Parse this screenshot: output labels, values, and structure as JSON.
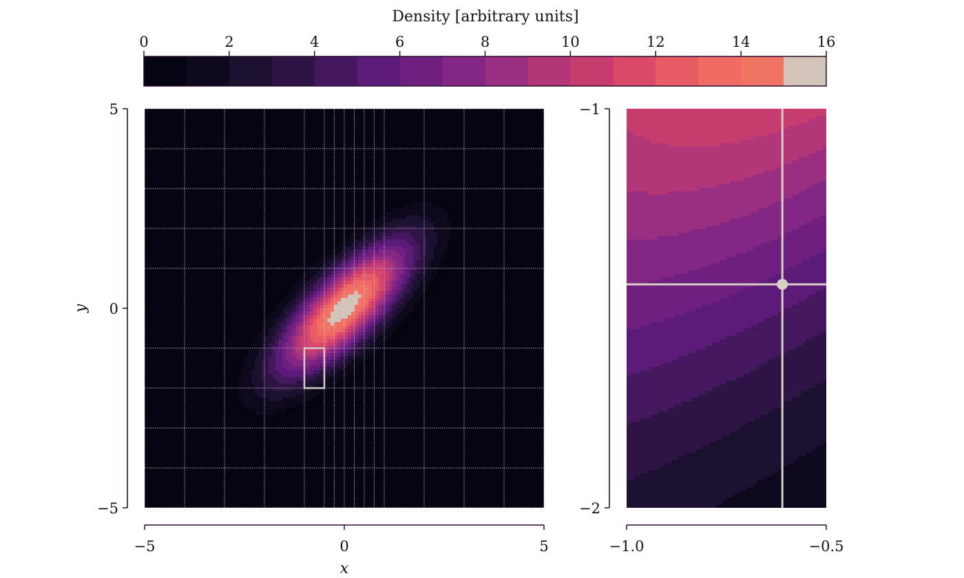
{
  "colors": {
    "background": "#ffffff",
    "axis": "#2a0a2e",
    "overlay": "#d8cfc6",
    "colormap": [
      "#000004",
      "#1c1044",
      "#4f127b",
      "#812581",
      "#b5367a",
      "#e55064",
      "#fb8761",
      "#fec287",
      "#fcfdbf"
    ]
  },
  "chart_data": [
    {
      "id": "colorbar",
      "type": "colorbar",
      "title": "Density [arbitrary units]",
      "range": [
        0,
        16
      ],
      "ticks": [
        0,
        2,
        4,
        6,
        8,
        10,
        12,
        14,
        16
      ],
      "tick_labels": [
        "0",
        "2",
        "4",
        "6",
        "8",
        "10",
        "12",
        "14",
        "16"
      ],
      "levels": [
        0,
        1,
        2,
        3,
        4,
        5,
        6,
        7,
        8,
        9,
        10,
        11,
        12,
        13,
        14,
        15,
        16
      ],
      "level_colors": [
        "#040310",
        "#0d081c",
        "#1c1030",
        "#2e1445",
        "#45175f",
        "#5c1b78",
        "#6e1f80",
        "#842784",
        "#9a2f82",
        "#b33678",
        "#c83d70",
        "#da4969",
        "#e85c65",
        "#ef6b64",
        "#f07565",
        "#d2c4b8",
        "#e5ddd4"
      ]
    },
    {
      "id": "main-panel",
      "type": "heatmap",
      "description_of_field": "rotated Gaussian density on an adaptive grid",
      "xlabel": "x",
      "ylabel": "y",
      "xlim": [
        -5,
        5
      ],
      "ylim": [
        -5,
        5
      ],
      "x_ticks": [
        -5,
        0,
        5
      ],
      "x_tick_labels": [
        "−5",
        "0",
        "5"
      ],
      "y_ticks": [
        -5,
        0,
        5
      ],
      "y_tick_labels": [
        "−5",
        "0",
        "5"
      ],
      "grid": "on",
      "peak": {
        "x": 0,
        "y": 0,
        "value": 16
      },
      "grid_x_lines": [
        -4,
        -3,
        -2,
        -1,
        -0.5,
        -0.25,
        0,
        0.25,
        0.5,
        0.75,
        1,
        2,
        3,
        4
      ],
      "grid_y_lines": [
        -4,
        -3,
        -2,
        -1,
        1,
        2,
        3,
        4
      ],
      "highlight_box": {
        "x0": -1.0,
        "x1": -0.5,
        "y0": -2.0,
        "y1": -1.0
      }
    },
    {
      "id": "zoom-panel",
      "type": "heatmap",
      "xlim": [
        -1.0,
        -0.5
      ],
      "ylim": [
        -2,
        -1
      ],
      "x_ticks": [
        -1.0,
        -0.5
      ],
      "x_tick_labels": [
        "−1.0",
        "−0.5"
      ],
      "y_ticks": [
        -2,
        -1
      ],
      "y_tick_labels": [
        "−2",
        "−1"
      ],
      "crosshair": {
        "x": -0.61,
        "y": -1.44
      }
    }
  ]
}
